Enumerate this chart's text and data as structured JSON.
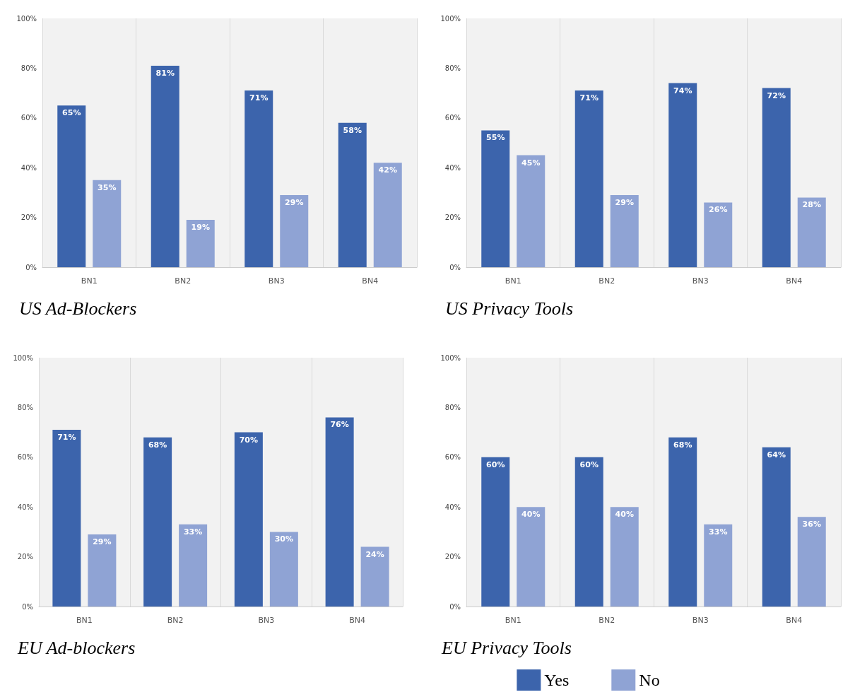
{
  "chart_data": [
    {
      "type": "bar",
      "title": "US Ad-Blockers",
      "categories": [
        "BN1",
        "BN2",
        "BN3",
        "BN4"
      ],
      "ylim": [
        0,
        100
      ],
      "yticks": [
        {
          "value": 0,
          "label": "0%"
        },
        {
          "value": 20,
          "label": "20%"
        },
        {
          "value": 40,
          "label": "40%"
        },
        {
          "value": 60,
          "label": "60%"
        },
        {
          "value": 80,
          "label": "80%"
        },
        {
          "value": 100,
          "label": "100%"
        }
      ],
      "grid": "x",
      "series": [
        {
          "color": "#3c64ac",
          "values": [
            65,
            81,
            71,
            58
          ],
          "value_labels": [
            "65%",
            "81%",
            "71%",
            "58%"
          ]
        },
        {
          "color": "#8fa3d4",
          "values": [
            35,
            19,
            29,
            42
          ],
          "value_labels": [
            "35%",
            "19%",
            "29%",
            "42%"
          ]
        }
      ]
    },
    {
      "type": "bar",
      "title": "US Privacy Tools",
      "categories": [
        "BN1",
        "BN2",
        "BN3",
        "BN4"
      ],
      "ylim": [
        0,
        100
      ],
      "yticks": [
        {
          "value": 0,
          "label": "0%"
        },
        {
          "value": 20,
          "label": "20%"
        },
        {
          "value": 40,
          "label": "40%"
        },
        {
          "value": 60,
          "label": "60%"
        },
        {
          "value": 80,
          "label": "80%"
        },
        {
          "value": 100,
          "label": "100%"
        }
      ],
      "grid": "x",
      "series": [
        {
          "color": "#3c64ac",
          "values": [
            55,
            71,
            74,
            72
          ],
          "value_labels": [
            "55%",
            "71%",
            "74%",
            "72%"
          ]
        },
        {
          "color": "#8fa3d4",
          "values": [
            45,
            29,
            26,
            28
          ],
          "value_labels": [
            "45%",
            "29%",
            "26%",
            "28%"
          ]
        }
      ]
    },
    {
      "type": "bar",
      "title": "EU Ad-blockers",
      "categories": [
        "BN1",
        "BN2",
        "BN3",
        "BN4"
      ],
      "ylim": [
        0,
        100
      ],
      "yticks": [
        {
          "value": 0,
          "label": "0%"
        },
        {
          "value": 20,
          "label": "20%"
        },
        {
          "value": 40,
          "label": "40%"
        },
        {
          "value": 60,
          "label": "60%"
        },
        {
          "value": 80,
          "label": "80%"
        },
        {
          "value": 100,
          "label": "100%"
        }
      ],
      "grid": "x",
      "series": [
        {
          "color": "#3c64ac",
          "values": [
            71,
            68,
            70,
            76
          ],
          "value_labels": [
            "71%",
            "68%",
            "70%",
            "76%"
          ]
        },
        {
          "color": "#8fa3d4",
          "values": [
            29,
            33,
            30,
            24
          ],
          "value_labels": [
            "29%",
            "33%",
            "30%",
            "24%"
          ]
        }
      ]
    },
    {
      "type": "bar",
      "title": "EU Privacy Tools",
      "categories": [
        "BN1",
        "BN2",
        "BN3",
        "BN4"
      ],
      "ylim": [
        0,
        100
      ],
      "yticks": [
        {
          "value": 0,
          "label": "0%"
        },
        {
          "value": 20,
          "label": "20%"
        },
        {
          "value": 40,
          "label": "40%"
        },
        {
          "value": 60,
          "label": "60%"
        },
        {
          "value": 80,
          "label": "80%"
        },
        {
          "value": 100,
          "label": "100%"
        }
      ],
      "grid": "x",
      "legend": "bottom",
      "series": [
        {
          "name": "Yes",
          "color": "#3c64ac",
          "values": [
            60,
            60,
            68,
            64
          ],
          "value_labels": [
            "60%",
            "60%",
            "68%",
            "64%"
          ]
        },
        {
          "name": "No",
          "color": "#8fa3d4",
          "values": [
            40,
            40,
            33,
            36
          ],
          "value_labels": [
            "40%",
            "40%",
            "33%",
            "36%"
          ]
        }
      ]
    }
  ]
}
